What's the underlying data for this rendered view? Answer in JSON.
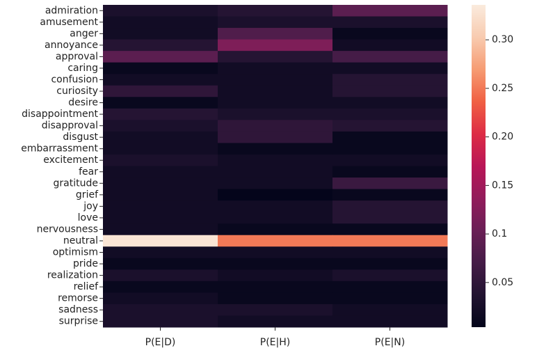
{
  "chart_data": {
    "type": "heatmap",
    "x": [
      "P(E|D)",
      "P(E|H)",
      "P(E|N)"
    ],
    "categories": [
      "admiration",
      "amusement",
      "anger",
      "annoyance",
      "approval",
      "caring",
      "confusion",
      "curiosity",
      "desire",
      "disappointment",
      "disapproval",
      "disgust",
      "embarrassment",
      "excitement",
      "fear",
      "gratitude",
      "grief",
      "joy",
      "love",
      "nervousness",
      "neutral",
      "optimism",
      "pride",
      "realization",
      "relief",
      "remorse",
      "sadness",
      "surprise"
    ],
    "values": [
      [
        0.03,
        0.04,
        0.09
      ],
      [
        0.02,
        0.03,
        0.03
      ],
      [
        0.02,
        0.08,
        0.01
      ],
      [
        0.04,
        0.12,
        0.02
      ],
      [
        0.09,
        0.04,
        0.07
      ],
      [
        0.01,
        0.02,
        0.02
      ],
      [
        0.02,
        0.02,
        0.04
      ],
      [
        0.05,
        0.02,
        0.04
      ],
      [
        0.01,
        0.02,
        0.02
      ],
      [
        0.04,
        0.03,
        0.03
      ],
      [
        0.03,
        0.05,
        0.04
      ],
      [
        0.02,
        0.05,
        0.01
      ],
      [
        0.02,
        0.01,
        0.01
      ],
      [
        0.03,
        0.02,
        0.02
      ],
      [
        0.02,
        0.02,
        0.01
      ],
      [
        0.02,
        0.02,
        0.06
      ],
      [
        0.02,
        0.005,
        0.01
      ],
      [
        0.02,
        0.02,
        0.04
      ],
      [
        0.02,
        0.02,
        0.04
      ],
      [
        0.02,
        0.01,
        0.01
      ],
      [
        0.33,
        0.25,
        0.25
      ],
      [
        0.02,
        0.02,
        0.02
      ],
      [
        0.01,
        0.01,
        0.01
      ],
      [
        0.03,
        0.02,
        0.03
      ],
      [
        0.01,
        0.01,
        0.01
      ],
      [
        0.02,
        0.01,
        0.01
      ],
      [
        0.03,
        0.03,
        0.02
      ],
      [
        0.03,
        0.02,
        0.02
      ]
    ],
    "colormap": "rocket",
    "zlim": [
      0.004,
      0.336
    ],
    "zticks": [
      0.05,
      0.1,
      {
        "value": 0.15,
        "label": "0.15"
      },
      {
        "value": 0.2,
        "label": "0.20"
      },
      0.25,
      {
        "value": 0.3,
        "label": "0.30"
      }
    ]
  }
}
